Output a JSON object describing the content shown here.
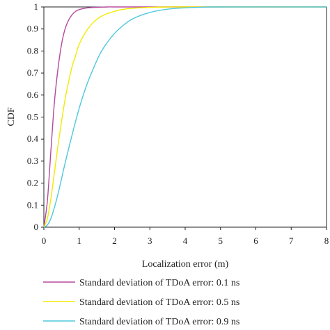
{
  "chart_data": {
    "type": "line",
    "title": "",
    "xlabel": "Localization error (m)",
    "ylabel": "CDF",
    "xlim": [
      0,
      8
    ],
    "ylim": [
      0,
      1
    ],
    "xticks": [
      "0",
      "1",
      "2",
      "3",
      "4",
      "5",
      "6",
      "7",
      "8"
    ],
    "yticks": [
      "0",
      "0.1",
      "0.2",
      "0.3",
      "0.4",
      "0.5",
      "0.6",
      "0.7",
      "0.8",
      "0.9",
      "1"
    ],
    "grid": false,
    "legend_position": "bottom",
    "series": [
      {
        "name": "Standard deviation of TDoA error: 0.1 ns",
        "color": "#b5489e",
        "x": [
          0,
          0.1,
          0.2,
          0.3,
          0.4,
          0.5,
          0.6,
          0.7,
          0.8,
          0.9,
          1.0,
          1.2,
          1.4,
          1.6,
          1.8,
          2.0,
          2.5,
          3.0,
          8.0
        ],
        "y": [
          0,
          0.12,
          0.35,
          0.57,
          0.72,
          0.83,
          0.9,
          0.94,
          0.965,
          0.98,
          0.988,
          0.995,
          0.998,
          0.999,
          1.0,
          1.0,
          1.0,
          1.0,
          1.0
        ]
      },
      {
        "name": "Standard deviation of TDoA error: 0.5 ns",
        "color": "#f2ea00",
        "x": [
          0,
          0.1,
          0.2,
          0.3,
          0.4,
          0.5,
          0.6,
          0.7,
          0.8,
          0.9,
          1.0,
          1.2,
          1.4,
          1.6,
          1.8,
          2.0,
          2.2,
          2.5,
          3.0,
          3.5,
          4.0,
          8.0
        ],
        "y": [
          0,
          0.04,
          0.13,
          0.25,
          0.37,
          0.48,
          0.58,
          0.66,
          0.73,
          0.78,
          0.83,
          0.89,
          0.93,
          0.955,
          0.97,
          0.98,
          0.988,
          0.994,
          0.998,
          1.0,
          1.0,
          1.0
        ]
      },
      {
        "name": "Standard deviation of TDoA error: 0.9 ns",
        "color": "#4ec8dc",
        "x": [
          0,
          0.1,
          0.2,
          0.3,
          0.4,
          0.5,
          0.6,
          0.8,
          1.0,
          1.2,
          1.4,
          1.6,
          1.8,
          2.0,
          2.2,
          2.5,
          3.0,
          3.5,
          4.0,
          4.5,
          5.0,
          8.0
        ],
        "y": [
          0,
          0.01,
          0.04,
          0.09,
          0.15,
          0.22,
          0.29,
          0.42,
          0.54,
          0.64,
          0.72,
          0.79,
          0.84,
          0.88,
          0.91,
          0.945,
          0.975,
          0.99,
          0.996,
          0.999,
          1.0,
          1.0
        ]
      }
    ]
  }
}
